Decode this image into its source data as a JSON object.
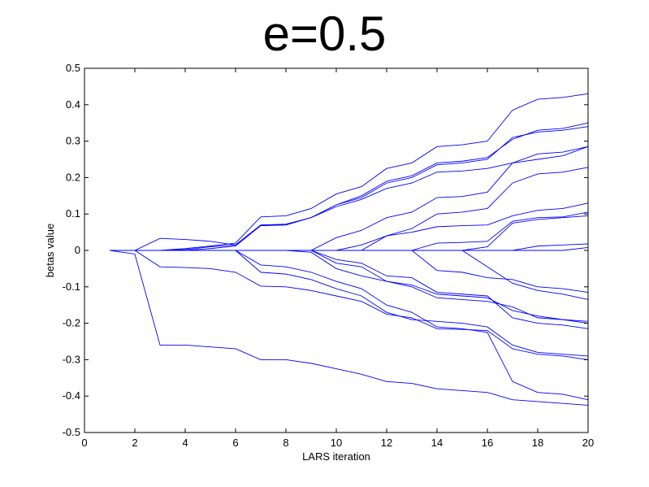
{
  "chart_data": {
    "type": "line",
    "title": "e=0.5",
    "xlabel": "LARS iteration",
    "ylabel": "betas value",
    "xlim": [
      0,
      20
    ],
    "ylim": [
      -0.5,
      0.5
    ],
    "xticks": [
      "0",
      "2",
      "4",
      "6",
      "8",
      "10",
      "12",
      "14",
      "16",
      "18",
      "20"
    ],
    "yticks": [
      "0.5",
      "0.4",
      "0.3",
      "0.2",
      "0.1",
      "0",
      "-0.1",
      "-0.2",
      "-0.3",
      "-0.4",
      "-0.5"
    ],
    "grid": false,
    "line_color": "#0000ff",
    "x": [
      1,
      2,
      3,
      4,
      5,
      6,
      7,
      8,
      9,
      10,
      11,
      12,
      13,
      14,
      15,
      16,
      17,
      18,
      19,
      20
    ],
    "series": [
      {
        "values": [
          0,
          -0.01,
          -0.26,
          -0.26,
          -0.265,
          -0.27,
          -0.3,
          -0.3,
          -0.31,
          -0.325,
          -0.34,
          -0.36,
          -0.365,
          -0.38,
          -0.385,
          -0.39,
          -0.41,
          -0.415,
          -0.42,
          -0.425
        ]
      },
      {
        "values": [
          0,
          0,
          0.033,
          0.03,
          0.025,
          0.015,
          0.07,
          0.072,
          0.09,
          0.12,
          0.14,
          0.17,
          0.185,
          0.215,
          0.218,
          0.225,
          0.24,
          0.265,
          0.27,
          0.285
        ]
      },
      {
        "values": [
          0,
          0,
          0,
          0.005,
          0.012,
          0.02,
          0.092,
          0.095,
          0.115,
          0.155,
          0.175,
          0.225,
          0.24,
          0.285,
          0.29,
          0.3,
          0.385,
          0.415,
          0.42,
          0.43
        ]
      },
      {
        "values": [
          0,
          0,
          0,
          0.002,
          0.01,
          0.015,
          0.068,
          0.07,
          0.09,
          0.125,
          0.15,
          0.19,
          0.205,
          0.24,
          0.245,
          0.255,
          0.305,
          0.33,
          0.335,
          0.35
        ]
      },
      {
        "values": [
          0,
          0,
          0,
          0,
          0.005,
          0.012,
          0.068,
          0.07,
          0.09,
          0.125,
          0.145,
          0.185,
          0.2,
          0.235,
          0.24,
          0.25,
          0.31,
          0.325,
          0.33,
          0.34
        ]
      },
      {
        "values": [
          0,
          0,
          0,
          0,
          0,
          0,
          0,
          0,
          0,
          0.035,
          0.055,
          0.09,
          0.105,
          0.145,
          0.148,
          0.16,
          0.24,
          0.25,
          0.26,
          0.285
        ]
      },
      {
        "values": [
          0,
          0,
          0,
          0,
          0,
          0,
          0,
          0,
          0,
          0,
          0.015,
          0.04,
          0.06,
          0.1,
          0.105,
          0.115,
          0.185,
          0.21,
          0.215,
          0.228
        ]
      },
      {
        "values": [
          0,
          0,
          0,
          0,
          0,
          0,
          0,
          0,
          0,
          0,
          0,
          0.04,
          0.05,
          0.065,
          0.068,
          0.07,
          0.095,
          0.11,
          0.115,
          0.13
        ]
      },
      {
        "values": [
          0,
          0,
          0,
          0,
          0,
          0,
          0,
          0,
          0,
          0,
          0,
          0,
          0,
          0.02,
          0.022,
          0.025,
          0.08,
          0.09,
          0.092,
          0.105
        ]
      },
      {
        "values": [
          0,
          0,
          0,
          0,
          0,
          0,
          0,
          0,
          0,
          0,
          0,
          0,
          0,
          0,
          0,
          0.01,
          0.075,
          0.085,
          0.09,
          0.095
        ]
      },
      {
        "values": [
          0,
          0,
          0,
          0,
          0,
          0,
          0,
          0,
          0,
          0,
          0,
          0,
          0,
          0,
          0,
          0,
          0,
          0.012,
          0.015,
          0.018
        ]
      },
      {
        "values": [
          0,
          0,
          0,
          0,
          0,
          0,
          0,
          0,
          0,
          0,
          0,
          0,
          0,
          0,
          0,
          0,
          0,
          0,
          0,
          0.008
        ]
      },
      {
        "values": [
          0,
          0,
          -0.045,
          -0.047,
          -0.05,
          -0.06,
          -0.098,
          -0.1,
          -0.11,
          -0.125,
          -0.14,
          -0.175,
          -0.185,
          -0.215,
          -0.217,
          -0.22,
          -0.27,
          -0.285,
          -0.29,
          -0.3
        ]
      },
      {
        "values": [
          0,
          0,
          0,
          0,
          0,
          0,
          -0.06,
          -0.065,
          -0.08,
          -0.105,
          -0.125,
          -0.17,
          -0.19,
          -0.195,
          -0.2,
          -0.21,
          -0.26,
          -0.28,
          -0.285,
          -0.29
        ]
      },
      {
        "values": [
          0,
          0,
          0,
          0,
          0,
          0,
          -0.04,
          -0.045,
          -0.06,
          -0.085,
          -0.105,
          -0.15,
          -0.17,
          -0.21,
          -0.215,
          -0.225,
          -0.36,
          -0.39,
          -0.395,
          -0.41
        ]
      },
      {
        "values": [
          0,
          0,
          0,
          0,
          0,
          0,
          0,
          0,
          -0.005,
          -0.05,
          -0.07,
          -0.085,
          -0.095,
          -0.12,
          -0.125,
          -0.13,
          -0.165,
          -0.18,
          -0.19,
          -0.2
        ]
      },
      {
        "values": [
          0,
          0,
          0,
          0,
          0,
          0,
          0,
          0,
          0,
          -0.035,
          -0.045,
          -0.085,
          -0.1,
          -0.13,
          -0.135,
          -0.14,
          -0.155,
          -0.185,
          -0.19,
          -0.195
        ]
      },
      {
        "values": [
          0,
          0,
          0,
          0,
          0,
          0,
          0,
          0,
          0,
          -0.025,
          -0.035,
          -0.07,
          -0.075,
          -0.115,
          -0.12,
          -0.125,
          -0.185,
          -0.2,
          -0.205,
          -0.215
        ]
      },
      {
        "values": [
          0,
          0,
          0,
          0,
          0,
          0,
          0,
          0,
          0,
          0,
          0,
          0,
          0,
          -0.055,
          -0.06,
          -0.075,
          -0.08,
          -0.1,
          -0.105,
          -0.115
        ]
      },
      {
        "values": [
          0,
          0,
          0,
          0,
          0,
          0,
          0,
          0,
          0,
          0,
          0,
          0,
          0,
          0,
          0,
          -0.045,
          -0.09,
          -0.11,
          -0.12,
          -0.135
        ]
      }
    ]
  }
}
